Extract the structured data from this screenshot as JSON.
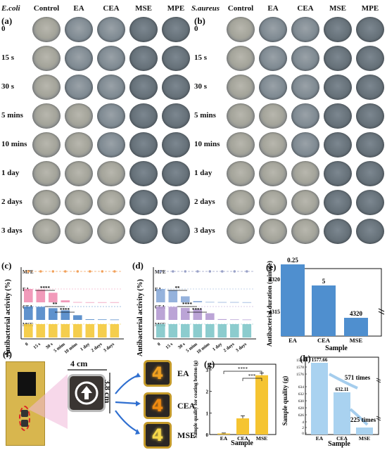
{
  "panel_a": {
    "letter": "(a)",
    "species": "E.coli",
    "columns": [
      "Control",
      "EA",
      "CEA",
      "MSE",
      "MPE"
    ],
    "rows": [
      "0",
      "15 s",
      "30 s",
      "5 mins",
      "10 mins",
      "1 day",
      "2 days",
      "3 days"
    ]
  },
  "panel_b": {
    "letter": "(b)",
    "species": "S.aureus",
    "columns": [
      "Control",
      "EA",
      "CEA",
      "MSE",
      "MPE"
    ],
    "rows": [
      "0",
      "15 s",
      "30 s",
      "5 mins",
      "10 mins",
      "1 day",
      "2 days",
      "3 days"
    ]
  },
  "panel_c": {
    "letter": "(c)",
    "ylabel": "Antibacterial activity (%)"
  },
  "panel_d": {
    "letter": "(d)",
    "ylabel": "Antibacterial activity (%)"
  },
  "panel_e": {
    "letter": "(e)"
  },
  "panel_f": {
    "letter": "(f)",
    "width_label": "4 cm",
    "height_label": "3.8 cm",
    "samples": [
      "EA",
      "CEA",
      "MSE"
    ],
    "button_glyph": "4"
  },
  "panel_g": {
    "letter": "(g)"
  },
  "panel_h": {
    "letter": "(h)"
  },
  "chart_data": [
    {
      "id": "c",
      "type": "bar",
      "ylabel": "Antibacterial activity (%)",
      "categories": [
        "0",
        "15 s",
        "30 s",
        "5 mins",
        "10 mins",
        "1 day",
        "2 days",
        "3 days"
      ],
      "series": [
        {
          "name": "MPE",
          "values": [
            100,
            100,
            100,
            100,
            100,
            100,
            100,
            100
          ],
          "color": "#f2a25c"
        },
        {
          "name": "EA",
          "values": [
            100,
            95,
            72,
            15,
            2,
            1,
            1,
            1
          ],
          "color": "#f08fb2"
        },
        {
          "name": "CEA",
          "values": [
            100,
            98,
            88,
            72,
            35,
            5,
            4,
            3
          ],
          "color": "#4e86c8"
        },
        {
          "name": "MSE",
          "values": [
            100,
            100,
            100,
            100,
            100,
            100,
            100,
            100
          ],
          "color": "#f4c93a"
        }
      ],
      "significance": [
        "****",
        "**",
        "****"
      ]
    },
    {
      "id": "d",
      "type": "bar",
      "ylabel": "Antibacterial activity (%)",
      "categories": [
        "0",
        "15 s",
        "30 s",
        "5 mins",
        "10 mins",
        "1 day",
        "2 days",
        "3 days"
      ],
      "series": [
        {
          "name": "MPE",
          "values": [
            100,
            100,
            100,
            100,
            100,
            100,
            100,
            100
          ],
          "color": "#9aa2c8"
        },
        {
          "name": "EA",
          "values": [
            100,
            92,
            45,
            10,
            3,
            2,
            2,
            1
          ],
          "color": "#8aaad8"
        },
        {
          "name": "CEA",
          "values": [
            100,
            98,
            90,
            80,
            50,
            6,
            4,
            3
          ],
          "color": "#b49ad2"
        },
        {
          "name": "MSE",
          "values": [
            100,
            100,
            100,
            100,
            100,
            100,
            100,
            100
          ],
          "color": "#7fc6c9"
        }
      ],
      "significance": [
        "**",
        "****",
        "****"
      ]
    },
    {
      "id": "e",
      "type": "bar",
      "xlabel": "Sample",
      "ylabel": "Antibacterial duration (minute)",
      "categories": [
        "EA",
        "CEA",
        "MSE"
      ],
      "values": [
        0.25,
        5,
        4320
      ],
      "data_labels": [
        "0.25",
        "5",
        "4320"
      ],
      "yticks": [
        "4315",
        "4320"
      ],
      "axis_break": true,
      "color": "#4f8fcf"
    },
    {
      "id": "g",
      "type": "bar",
      "xlabel": "Sample",
      "ylabel": "Sample quality for coating button (g)",
      "categories": [
        "EA",
        "CEA",
        "MSE"
      ],
      "values": [
        0.05,
        0.75,
        2.75
      ],
      "errors": [
        0.02,
        0.12,
        0.1
      ],
      "ylim": [
        0,
        3
      ],
      "yticks": [
        "0",
        "1",
        "2",
        "3"
      ],
      "significance": [
        "****",
        "***"
      ],
      "color": "#f5c431"
    },
    {
      "id": "h",
      "type": "bar",
      "xlabel": "Sample",
      "ylabel": "Sample quality (g)",
      "categories": [
        "EA",
        "CEA",
        "MSE"
      ],
      "values": [
        1577.66,
        632.11,
        2.75
      ],
      "data_labels": [
        "1577.66",
        "632.11",
        ""
      ],
      "yticks": [
        "1580",
        "1578",
        "1576",
        "634",
        "632",
        "630",
        "628",
        "626",
        "4",
        "2",
        "0"
      ],
      "annotations": [
        "571 times",
        "225 times"
      ],
      "axis_break": true,
      "color": "#a9d2f0"
    }
  ]
}
